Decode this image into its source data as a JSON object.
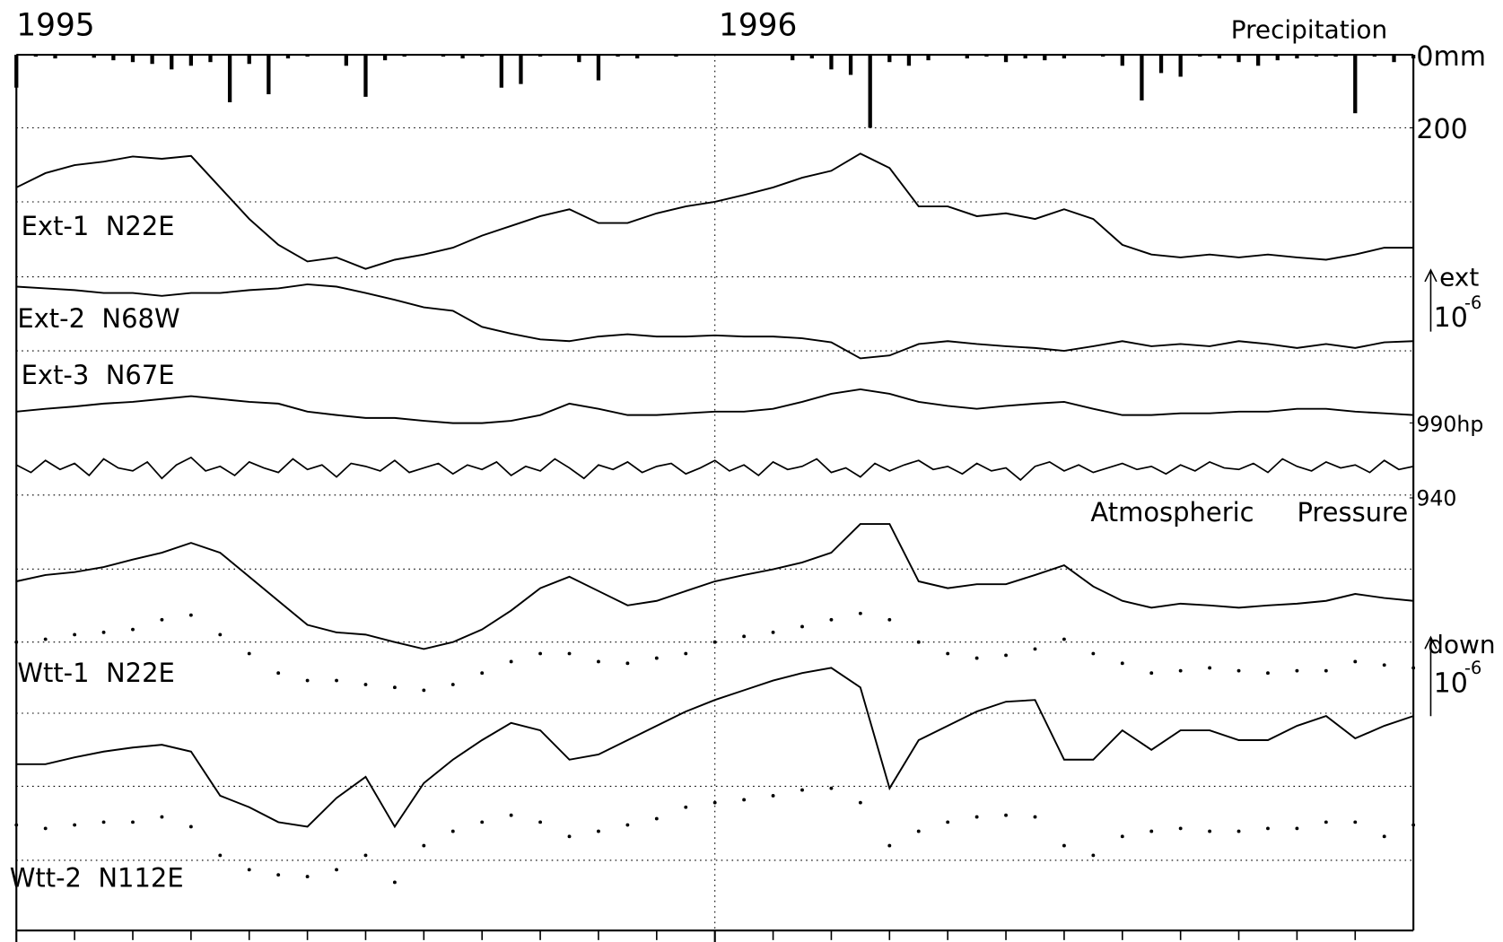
{
  "chart_data": [
    {
      "type": "bar",
      "title": "Precipitation",
      "xlim": [
        1995,
        1997
      ],
      "xticks": [
        1995,
        1996
      ],
      "ylim": [
        0,
        200
      ],
      "yticks": [
        {
          "value": 0,
          "label": "0mm"
        },
        200
      ],
      "color": "#000000",
      "values": [
        90,
        5,
        10,
        0,
        8,
        15,
        20,
        25,
        40,
        30,
        20,
        130,
        25,
        108,
        10,
        5,
        0,
        30,
        115,
        15,
        5,
        0,
        5,
        10,
        5,
        90,
        80,
        5,
        0,
        20,
        70,
        5,
        10,
        0,
        5,
        0,
        0,
        0,
        0,
        0,
        15,
        10,
        40,
        55,
        200,
        20,
        30,
        15,
        0,
        10,
        5,
        20,
        10,
        15,
        10,
        0,
        5,
        30,
        125,
        50,
        60,
        5,
        10,
        20,
        30,
        15,
        10,
        5,
        5,
        160,
        5,
        20,
        10
      ]
    },
    {
      "type": "line",
      "title": "Atmospheric Pressure",
      "ylim": [
        940,
        990
      ],
      "yticks": [
        {
          "value": 990,
          "label": "990hp"
        },
        940
      ],
      "color": "#000000",
      "values": [
        962,
        957,
        965,
        959,
        963,
        955,
        966,
        960,
        958,
        964,
        953,
        962,
        967,
        958,
        961,
        955,
        964,
        960,
        957,
        966,
        959,
        962,
        954,
        963,
        961,
        958,
        965,
        957,
        960,
        963,
        956,
        962,
        959,
        964,
        955,
        961,
        958,
        966,
        960,
        953,
        962,
        959,
        964,
        957,
        961,
        963,
        956,
        960,
        965,
        958,
        962,
        955,
        964,
        959,
        961,
        966,
        957,
        960,
        954,
        963,
        958,
        962,
        965,
        959,
        961,
        956,
        963,
        958,
        960,
        952,
        961,
        964,
        958,
        962,
        957,
        960,
        963,
        959,
        961,
        956,
        962,
        958,
        964,
        960,
        959,
        963,
        957,
        966,
        961,
        958,
        964,
        960,
        962,
        957,
        965,
        959,
        961
      ]
    },
    {
      "type": "line",
      "ylim": [
        0,
        14
      ],
      "scale_bars": [
        {
          "label": "ext",
          "unit": "10",
          "exponent": "-6"
        },
        {
          "label": "down",
          "unit": "10",
          "exponent": "-6"
        }
      ],
      "series": [
        {
          "name": "Ext-1  N22E",
          "color": "#000000",
          "values": [
            12.96,
            13.21,
            13.35,
            13.41,
            13.5,
            13.46,
            13.51,
            12.96,
            12.41,
            11.96,
            11.67,
            11.74,
            11.54,
            11.7,
            11.79,
            11.91,
            12.12,
            12.29,
            12.46,
            12.58,
            12.34,
            12.34,
            12.51,
            12.63,
            12.71,
            12.83,
            12.96,
            13.13,
            13.25,
            13.55,
            13.3,
            12.63,
            12.63,
            12.46,
            12.51,
            12.41,
            12.58,
            12.41,
            11.96,
            11.79,
            11.74,
            11.79,
            11.74,
            11.79,
            11.74,
            11.7,
            11.79,
            11.91,
            11.91
          ]
        },
        {
          "name": "Ext-2  N68W",
          "color": "#000000",
          "values": [
            11.23,
            11.2,
            11.17,
            11.12,
            11.12,
            11.07,
            11.12,
            11.12,
            11.17,
            11.2,
            11.27,
            11.23,
            11.12,
            11.0,
            10.87,
            10.81,
            10.53,
            10.41,
            10.31,
            10.28,
            10.36,
            10.4,
            10.36,
            10.36,
            10.38,
            10.36,
            10.36,
            10.33,
            10.26,
            9.98,
            10.03,
            10.23,
            10.28,
            10.23,
            10.19,
            10.16,
            10.11,
            10.19,
            10.28,
            10.19,
            10.23,
            10.19,
            10.28,
            10.23,
            10.16,
            10.23,
            10.16,
            10.26,
            10.28
          ]
        },
        {
          "name": "Ext-3  N67E",
          "color": "#000000",
          "values": [
            9.05,
            9.1,
            9.14,
            9.19,
            9.22,
            9.27,
            9.32,
            9.27,
            9.22,
            9.19,
            9.05,
            8.99,
            8.94,
            8.94,
            8.89,
            8.85,
            8.85,
            8.89,
            8.99,
            9.19,
            9.1,
            8.99,
            8.99,
            9.02,
            9.05,
            9.05,
            9.1,
            9.22,
            9.36,
            9.44,
            9.36,
            9.22,
            9.15,
            9.1,
            9.15,
            9.19,
            9.22,
            9.1,
            8.99,
            8.99,
            9.02,
            9.02,
            9.05,
            9.05,
            9.1,
            9.1,
            9.05,
            9.02,
            8.99
          ]
        },
        {
          "name": "Wtt-1  N22E",
          "color": "#000000",
          "values": [
            6.09,
            6.2,
            6.25,
            6.34,
            6.47,
            6.59,
            6.76,
            6.59,
            6.17,
            5.75,
            5.33,
            5.2,
            5.16,
            5.03,
            4.91,
            5.03,
            5.25,
            5.58,
            5.97,
            6.17,
            5.92,
            5.67,
            5.75,
            5.92,
            6.09,
            6.2,
            6.3,
            6.42,
            6.59,
            7.09,
            7.09,
            6.09,
            5.97,
            6.04,
            6.04,
            6.2,
            6.37,
            6.0,
            5.75,
            5.63,
            5.7,
            5.67,
            5.63,
            5.67,
            5.7,
            5.75,
            5.87,
            5.8,
            5.75
          ],
          "dotted_values": [
            5.03,
            5.08,
            5.16,
            5.2,
            5.25,
            5.42,
            5.5,
            5.16,
            4.83,
            4.49,
            4.36,
            4.36,
            4.29,
            4.24,
            4.19,
            4.29,
            4.49,
            4.69,
            4.83,
            4.83,
            4.69,
            4.66,
            4.75,
            4.83,
            5.03,
            5.13,
            5.2,
            5.3,
            5.42,
            5.53,
            5.42,
            5.03,
            4.83,
            4.75,
            4.8,
            4.91,
            5.08,
            4.83,
            4.66,
            4.49,
            4.53,
            4.58,
            4.53,
            4.49,
            4.53,
            4.53,
            4.69,
            4.63,
            4.58
          ]
        },
        {
          "name": "Wtt-2  N112E",
          "color": "#000000",
          "values": [
            2.9,
            2.9,
            3.02,
            3.12,
            3.19,
            3.24,
            3.12,
            2.35,
            2.15,
            1.89,
            1.81,
            2.31,
            2.68,
            1.81,
            2.57,
            2.98,
            3.32,
            3.62,
            3.49,
            2.98,
            3.07,
            3.32,
            3.57,
            3.82,
            4.02,
            4.19,
            4.36,
            4.49,
            4.58,
            4.24,
            2.48,
            3.32,
            3.57,
            3.82,
            3.99,
            4.02,
            2.98,
            2.98,
            3.49,
            3.15,
            3.49,
            3.49,
            3.32,
            3.32,
            3.57,
            3.74,
            3.35,
            3.57,
            3.74
          ],
          "dotted_values": [
            1.84,
            1.78,
            1.84,
            1.89,
            1.89,
            1.98,
            1.81,
            1.31,
            1.06,
            0.97,
            0.94,
            1.06,
            1.31,
            0.84,
            1.48,
            1.73,
            1.89,
            2.01,
            1.89,
            1.64,
            1.73,
            1.84,
            1.95,
            2.15,
            2.23,
            2.28,
            2.35,
            2.45,
            2.48,
            2.23,
            1.48,
            1.73,
            1.89,
            1.98,
            2.01,
            1.98,
            1.48,
            1.31,
            1.64,
            1.73,
            1.78,
            1.73,
            1.73,
            1.78,
            1.78,
            1.89,
            1.89,
            1.64,
            1.84
          ]
        }
      ]
    }
  ]
}
